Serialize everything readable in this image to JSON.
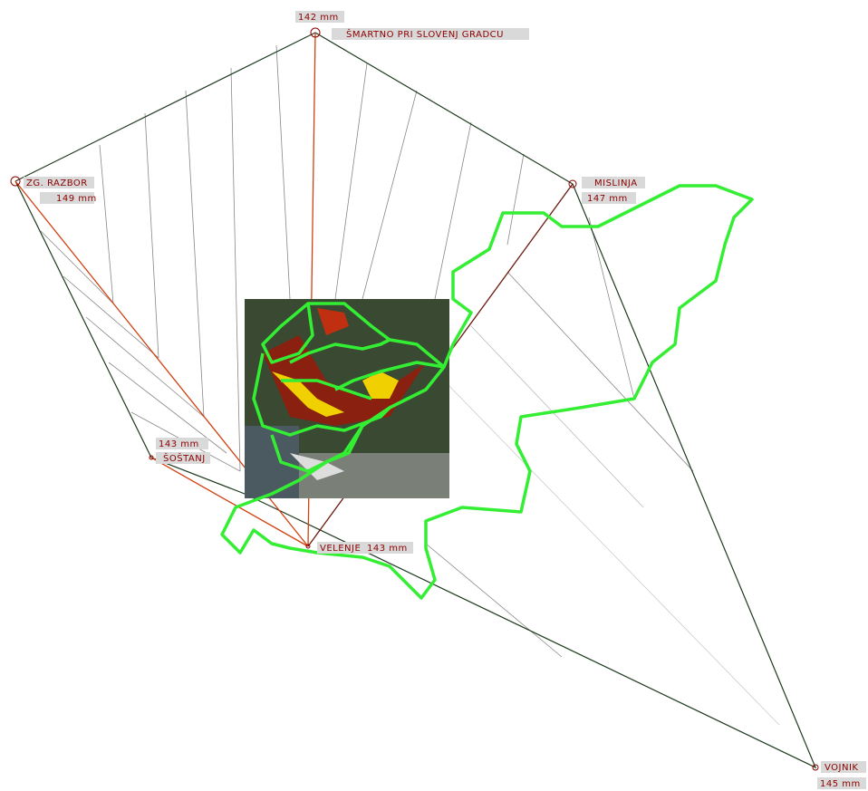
{
  "stations": [
    {
      "name": "ŠMARTNO PRI SLOVENJ GRADCU",
      "rainfall": "142 mm"
    },
    {
      "name": "ZG. RAZBOR",
      "rainfall": "149 mm"
    },
    {
      "name": "MISLINJA",
      "rainfall": "147 mm"
    },
    {
      "name": "ŠOŠTANJ",
      "rainfall": "143 mm"
    },
    {
      "name": "VELENJE",
      "rainfall": "143 mm"
    },
    {
      "name": "VOJNIK",
      "rainfall": "145 mm"
    }
  ]
}
